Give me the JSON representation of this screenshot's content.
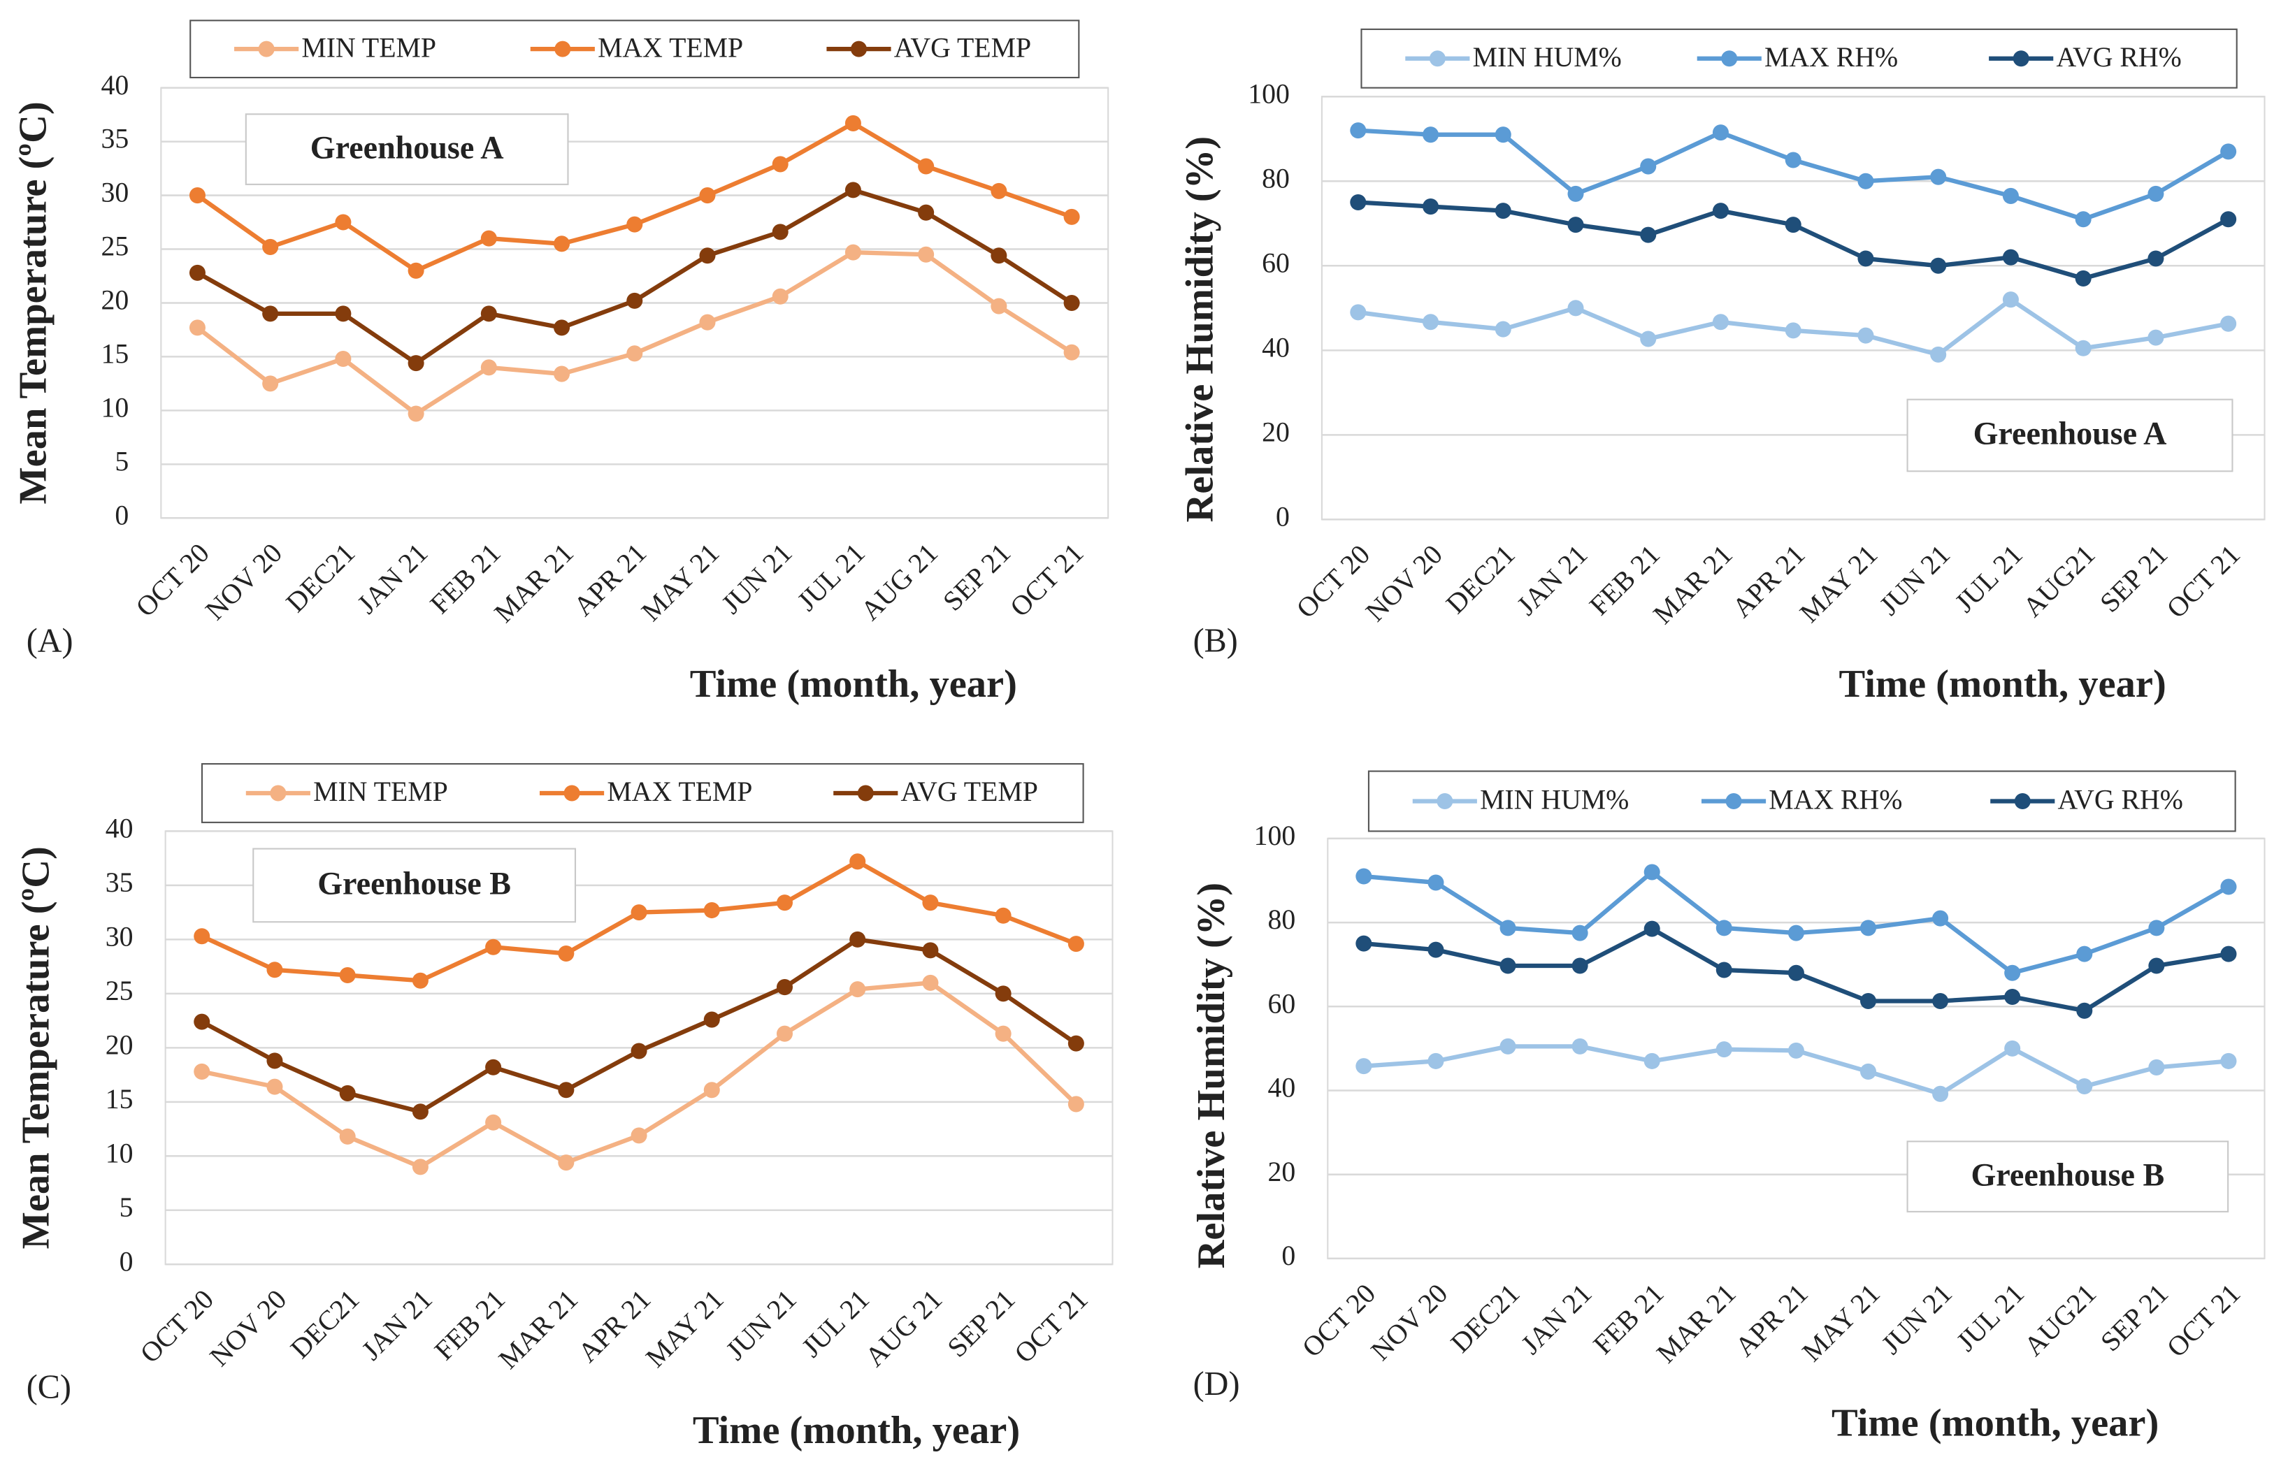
{
  "chart_data": [
    {
      "type": "line",
      "panel_label": "(A)",
      "annotation": "Greenhouse A",
      "xlabel": "Time (month, year)",
      "ylabel": "Mean Temperature (ºC)",
      "categories": [
        "OCT 20",
        "NOV 20",
        "DEC21",
        "JAN 21",
        "FEB 21",
        "MAR 21",
        "APR 21",
        "MAY 21",
        "JUN 21",
        "JUL 21",
        "AUG 21",
        "SEP 21",
        "OCT 21"
      ],
      "series": [
        {
          "name": "MIN TEMP",
          "color": "#f4b183",
          "values": [
            17.7,
            12.5,
            14.8,
            9.7,
            14,
            13.4,
            15.3,
            18.2,
            20.6,
            24.7,
            24.5,
            19.7,
            15.4
          ]
        },
        {
          "name": "MAX TEMP",
          "color": "#ed7d31",
          "values": [
            30,
            25.2,
            27.5,
            23,
            26,
            25.5,
            27.3,
            30,
            32.9,
            36.7,
            32.7,
            30.4,
            28
          ]
        },
        {
          "name": "AVG TEMP",
          "color": "#843c0c",
          "values": [
            22.8,
            19,
            19,
            14.4,
            19,
            17.7,
            20.2,
            24.4,
            26.6,
            30.5,
            28.4,
            24.4,
            20
          ]
        }
      ],
      "ylim": [
        0,
        40
      ],
      "yticks": [
        0,
        5,
        10,
        15,
        20,
        25,
        30,
        35,
        40
      ],
      "grid": true,
      "legend": "top"
    },
    {
      "type": "line",
      "panel_label": "(B)",
      "annotation": "Greenhouse A",
      "xlabel": "Time (month, year)",
      "ylabel": "Relative Humidity (%)",
      "categories": [
        "OCT 20",
        "NOV 20",
        "DEC21",
        "JAN 21",
        "FEB 21",
        "MAR 21",
        "APR 21",
        "MAY 21",
        "JUN 21",
        "JUL 21",
        "AUG21",
        "SEP 21",
        "OCT 21"
      ],
      "series": [
        {
          "name": "MIN HUM%",
          "color": "#9dc3e6",
          "values": [
            49,
            46.7,
            45,
            50,
            42.7,
            46.7,
            44.7,
            43.5,
            39,
            52,
            40.5,
            43,
            46.3
          ]
        },
        {
          "name": "MAX RH%",
          "color": "#5b9bd5",
          "values": [
            92,
            91,
            91,
            77,
            83.5,
            91.5,
            85,
            80,
            81,
            76.5,
            71,
            77,
            87
          ]
        },
        {
          "name": "AVG RH%",
          "color": "#1f4e79",
          "values": [
            75,
            74,
            73,
            69.7,
            67.3,
            73,
            69.7,
            61.7,
            60,
            62,
            57,
            61.7,
            71
          ]
        }
      ],
      "ylim": [
        0,
        100
      ],
      "yticks": [
        0,
        20,
        40,
        60,
        80,
        100
      ],
      "grid": true,
      "legend": "top"
    },
    {
      "type": "line",
      "panel_label": "(C)",
      "annotation": "Greenhouse B",
      "xlabel": "Time (month, year)",
      "ylabel": "Mean Temperature (ºC)",
      "categories": [
        "OCT 20",
        "NOV 20",
        "DEC21",
        "JAN 21",
        "FEB 21",
        "MAR 21",
        "APR 21",
        "MAY 21",
        "JUN 21",
        "JUL 21",
        "AUG 21",
        "SEP 21",
        "OCT 21"
      ],
      "series": [
        {
          "name": "MIN TEMP",
          "color": "#f4b183",
          "values": [
            17.8,
            16.4,
            11.8,
            9,
            13.1,
            9.4,
            11.9,
            16.1,
            21.3,
            25.4,
            26,
            21.3,
            14.8
          ]
        },
        {
          "name": "MAX TEMP",
          "color": "#ed7d31",
          "values": [
            30.3,
            27.2,
            26.7,
            26.2,
            29.3,
            28.7,
            32.5,
            32.7,
            33.4,
            37.2,
            33.4,
            32.2,
            29.6
          ]
        },
        {
          "name": "AVG TEMP",
          "color": "#843c0c",
          "values": [
            22.4,
            18.8,
            15.8,
            14.1,
            18.2,
            16.1,
            19.7,
            22.6,
            25.6,
            30,
            29,
            25,
            20.4
          ]
        }
      ],
      "ylim": [
        0,
        40
      ],
      "yticks": [
        0,
        5,
        10,
        15,
        20,
        25,
        30,
        35,
        40
      ],
      "grid": true,
      "legend": "top"
    },
    {
      "type": "line",
      "panel_label": "(D)",
      "annotation": "Greenhouse B",
      "xlabel": "Time (month, year)",
      "ylabel": "Relative Humidity (%)",
      "categories": [
        "OCT 20",
        "NOV 20",
        "DEC21",
        "JAN 21",
        "FEB 21",
        "MAR 21",
        "APR 21",
        "MAY 21",
        "JUN 21",
        "JUL 21",
        "AUG21",
        "SEP 21",
        "OCT 21"
      ],
      "series": [
        {
          "name": "MIN HUM%",
          "color": "#9dc3e6",
          "values": [
            45.8,
            47,
            50.5,
            50.5,
            47,
            49.8,
            49.5,
            44.5,
            39.2,
            50,
            41,
            45.5,
            47
          ]
        },
        {
          "name": "MAX RH%",
          "color": "#5b9bd5",
          "values": [
            91,
            89.5,
            78.7,
            77.5,
            92,
            78.7,
            77.5,
            78.7,
            81,
            68,
            72.5,
            78.7,
            88.5
          ]
        },
        {
          "name": "AVG RH%",
          "color": "#1f4e79",
          "values": [
            75,
            73.5,
            69.7,
            69.7,
            78.5,
            68.7,
            68,
            61.3,
            61.3,
            62.3,
            59,
            69.7,
            72.5
          ]
        }
      ],
      "ylim": [
        0,
        100
      ],
      "yticks": [
        0,
        20,
        40,
        60,
        80,
        100
      ],
      "grid": true,
      "legend": "top"
    }
  ]
}
